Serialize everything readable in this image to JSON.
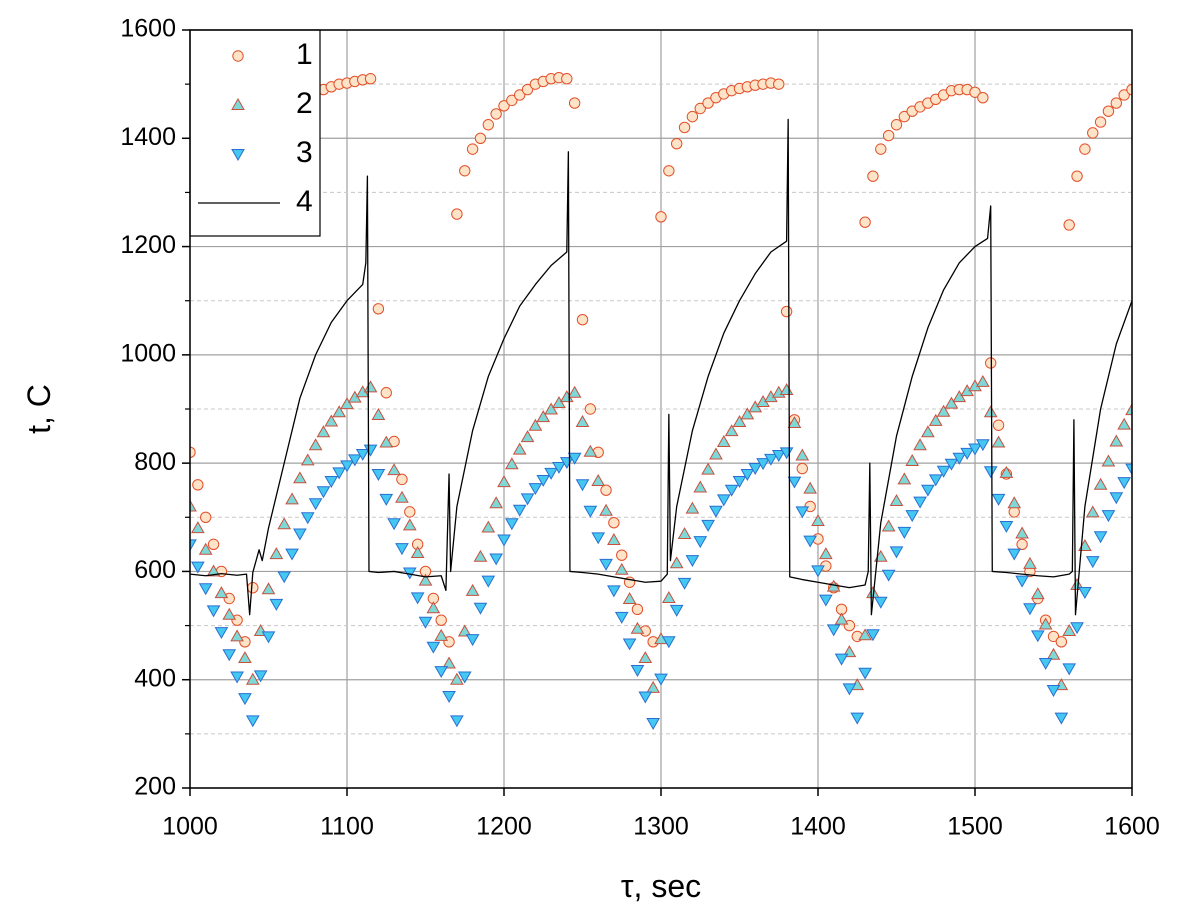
{
  "chart_data": {
    "type": "scatter",
    "xlabel": "τ, sec",
    "ylabel": "t, C",
    "xlim": [
      1000,
      1600
    ],
    "ylim": [
      200,
      1600
    ],
    "xticks": [
      1000,
      1100,
      1200,
      1300,
      1400,
      1500,
      1600
    ],
    "yticks": [
      200,
      400,
      600,
      800,
      1000,
      1200,
      1400,
      1600
    ],
    "yminorticks": [
      300,
      500,
      700,
      900,
      1100,
      1300,
      1500
    ],
    "grid": true,
    "legend": "upper left",
    "x": [
      1000,
      1005,
      1010,
      1015,
      1020,
      1025,
      1030,
      1035,
      1040,
      1045,
      1050,
      1055,
      1060,
      1065,
      1070,
      1075,
      1080,
      1085,
      1090,
      1095,
      1100,
      1105,
      1110,
      1115,
      1120,
      1125,
      1130,
      1135,
      1140,
      1145,
      1150,
      1155,
      1160,
      1165,
      1170,
      1175,
      1180,
      1185,
      1190,
      1195,
      1200,
      1205,
      1210,
      1215,
      1220,
      1225,
      1230,
      1235,
      1240,
      1245,
      1250,
      1255,
      1260,
      1265,
      1270,
      1275,
      1280,
      1285,
      1290,
      1295,
      1300,
      1305,
      1310,
      1315,
      1320,
      1325,
      1330,
      1335,
      1340,
      1345,
      1350,
      1355,
      1360,
      1365,
      1370,
      1375,
      1380,
      1385,
      1390,
      1395,
      1400,
      1405,
      1410,
      1415,
      1420,
      1425,
      1430,
      1435,
      1440,
      1445,
      1450,
      1455,
      1460,
      1465,
      1470,
      1475,
      1480,
      1485,
      1490,
      1495,
      1500,
      1505,
      1510,
      1515,
      1520,
      1525,
      1530,
      1535,
      1540,
      1545,
      1550,
      1555,
      1560,
      1565,
      1570,
      1575,
      1580,
      1585,
      1590,
      1595,
      1600
    ],
    "series": [
      {
        "name": "1",
        "marker": "circle",
        "color": "#fde3c8",
        "edgecolor": "#e2502a",
        "values": [
          820,
          760,
          700,
          650,
          600,
          550,
          510,
          470,
          570,
          null,
          null,
          null,
          null,
          null,
          null,
          null,
          null,
          1490,
          1495,
          1500,
          1502,
          1505,
          1508,
          1510,
          1085,
          930,
          840,
          770,
          710,
          650,
          600,
          550,
          510,
          470,
          1260,
          1340,
          1380,
          1400,
          1425,
          1445,
          1460,
          1470,
          1480,
          1490,
          1500,
          1505,
          1510,
          1512,
          1510,
          1465,
          1065,
          900,
          820,
          750,
          690,
          630,
          580,
          530,
          490,
          470,
          1255,
          1340,
          1390,
          1420,
          1440,
          1455,
          1465,
          1475,
          1482,
          1488,
          1492,
          1495,
          1498,
          1500,
          1502,
          1500,
          1080,
          880,
          790,
          720,
          660,
          610,
          570,
          530,
          500,
          480,
          1245,
          1330,
          1380,
          1405,
          1425,
          1440,
          1450,
          1458,
          1465,
          1472,
          1480,
          1488,
          1490,
          1490,
          1485,
          1475,
          985,
          870,
          780,
          710,
          650,
          600,
          550,
          510,
          480,
          470,
          1240,
          1330,
          1380,
          1410,
          1430,
          1450,
          1465,
          1480,
          1490
        ]
      },
      {
        "name": "2",
        "marker": "triangle-up",
        "color": "#7fd8d8",
        "edgecolor": "#c8503c",
        "values": [
          720,
          680,
          640,
          600,
          560,
          520,
          480,
          440,
          400,
          490,
          567,
          632,
          687,
          733,
          772,
          805,
          833,
          857,
          877,
          894,
          909,
          921,
          931,
          940,
          889,
          838,
          787,
          736,
          685,
          634,
          583,
          532,
          481,
          430,
          400,
          489,
          564,
          627,
          681,
          726,
          765,
          798,
          825,
          848,
          869,
          885,
          899,
          911,
          922,
          930,
          876,
          821,
          767,
          712,
          658,
          603,
          549,
          494,
          440,
          385,
          475,
          551,
          615,
          669,
          716,
          755,
          788,
          816,
          839,
          859,
          876,
          890,
          903,
          913,
          922,
          930,
          935,
          874,
          814,
          753,
          693,
          632,
          572,
          511,
          451,
          390,
          482,
          560,
          627,
          683,
          730,
          770,
          804,
          833,
          857,
          878,
          895,
          910,
          922,
          933,
          942,
          950,
          894,
          838,
          782,
          726,
          670,
          614,
          558,
          502,
          446,
          390,
          490,
          575,
          647,
          709,
          760,
          803,
          840,
          871,
          898
        ]
      },
      {
        "name": "3",
        "marker": "triangle-down",
        "color": "#44c8f2",
        "edgecolor": "#2a6fd0",
        "values": [
          650,
          609,
          569,
          528,
          488,
          447,
          406,
          366,
          325,
          408,
          480,
          540,
          591,
          633,
          670,
          700,
          726,
          748,
          767,
          783,
          796,
          807,
          817,
          825,
          780,
          734,
          689,
          643,
          598,
          552,
          507,
          461,
          416,
          370,
          325,
          406,
          475,
          533,
          583,
          624,
          659,
          689,
          714,
          735,
          754,
          769,
          782,
          793,
          802,
          810,
          761,
          712,
          663,
          614,
          565,
          516,
          467,
          418,
          369,
          320,
          402,
          471,
          529,
          579,
          621,
          656,
          686,
          712,
          733,
          751,
          767,
          780,
          791,
          800,
          808,
          815,
          820,
          766,
          711,
          657,
          602,
          548,
          493,
          439,
          384,
          330,
          413,
          484,
          544,
          594,
          637,
          673,
          704,
          729,
          751,
          770,
          786,
          799,
          810,
          819,
          827,
          835,
          785,
          734,
          684,
          633,
          583,
          532,
          482,
          431,
          381,
          330,
          421,
          497,
          562,
          619,
          665,
          704,
          737,
          765,
          790
        ]
      },
      {
        "name": "4",
        "marker": "line",
        "color": "#000000",
        "x": [
          1000,
          1010,
          1020,
          1030,
          1036,
          1038,
          1040,
          1044,
          1046,
          1050,
          1060,
          1070,
          1080,
          1090,
          1100,
          1110,
          1112,
          1113,
          1114,
          1120,
          1130,
          1140,
          1150,
          1160,
          1163,
          1165,
          1166,
          1170,
          1180,
          1190,
          1200,
          1210,
          1220,
          1230,
          1240,
          1241,
          1242,
          1250,
          1260,
          1270,
          1280,
          1290,
          1300,
          1304,
          1305,
          1306,
          1310,
          1320,
          1330,
          1340,
          1350,
          1360,
          1370,
          1380,
          1381,
          1382,
          1390,
          1400,
          1410,
          1420,
          1430,
          1432,
          1433,
          1434,
          1440,
          1450,
          1460,
          1470,
          1480,
          1490,
          1500,
          1508,
          1510,
          1511,
          1520,
          1530,
          1540,
          1550,
          1560,
          1562,
          1563,
          1564,
          1570,
          1580,
          1590,
          1600
        ],
        "values": [
          595,
          592,
          596,
          593,
          595,
          520,
          598,
          640,
          620,
          680,
          800,
          920,
          1000,
          1060,
          1100,
          1130,
          1170,
          1330,
          600,
          598,
          600,
          595,
          590,
          592,
          565,
          780,
          600,
          720,
          860,
          960,
          1030,
          1090,
          1130,
          1165,
          1190,
          1375,
          600,
          598,
          595,
          590,
          585,
          580,
          582,
          595,
          890,
          620,
          720,
          860,
          960,
          1040,
          1100,
          1150,
          1190,
          1210,
          1435,
          590,
          585,
          580,
          575,
          570,
          575,
          600,
          800,
          520,
          690,
          850,
          960,
          1050,
          1120,
          1170,
          1200,
          1215,
          1275,
          600,
          598,
          595,
          592,
          590,
          595,
          600,
          880,
          520,
          720,
          900,
          1020,
          1100
        ]
      }
    ]
  }
}
